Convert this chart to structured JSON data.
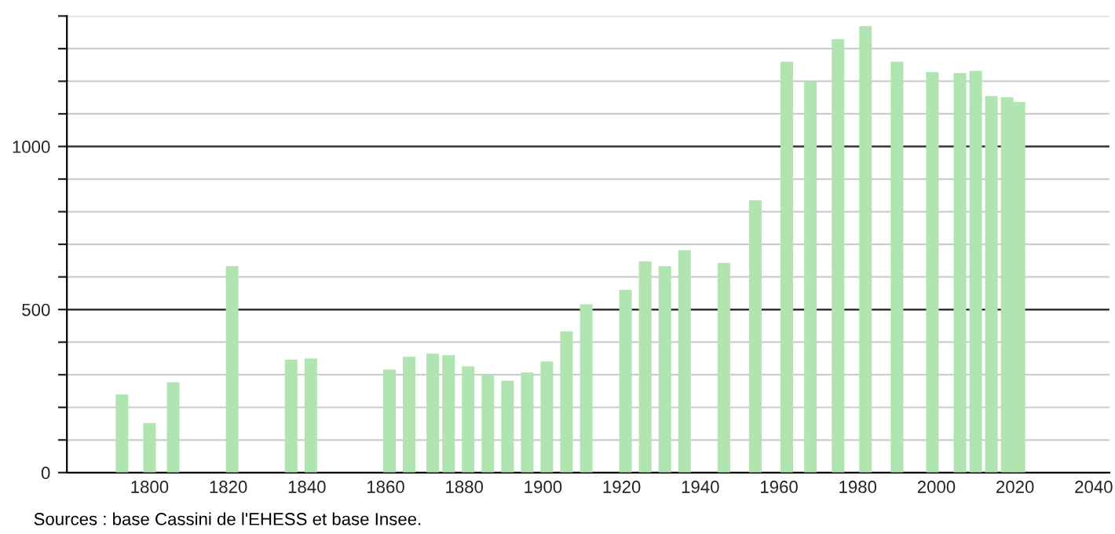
{
  "chart_data": {
    "type": "bar",
    "x": [
      1793,
      1800,
      1806,
      1821,
      1836,
      1841,
      1861,
      1866,
      1872,
      1876,
      1881,
      1886,
      1891,
      1896,
      1901,
      1906,
      1911,
      1921,
      1926,
      1931,
      1936,
      1946,
      1954,
      1962,
      1968,
      1975,
      1982,
      1990,
      1999,
      2006,
      2010,
      2014,
      2018,
      2021
    ],
    "values": [
      240,
      152,
      277,
      633,
      346,
      350,
      316,
      355,
      365,
      360,
      326,
      300,
      282,
      307,
      341,
      433,
      516,
      560,
      648,
      633,
      682,
      643,
      835,
      1260,
      1200,
      1329,
      1369,
      1260,
      1228,
      1225,
      1232,
      1155,
      1151,
      1136
    ],
    "color": "#b0e4b0",
    "xlim": [
      1779,
      2044
    ],
    "xticks": [
      1800,
      1820,
      1840,
      1860,
      1880,
      1900,
      1920,
      1940,
      1960,
      1980,
      2000,
      2020,
      2040
    ],
    "ylim": [
      0,
      1400
    ],
    "yticks": [
      0,
      {
        "value": 100,
        "label": null
      },
      {
        "value": 200,
        "label": null
      },
      {
        "value": 300,
        "label": null
      },
      {
        "value": 400,
        "label": null
      },
      500,
      {
        "value": 600,
        "label": null
      },
      {
        "value": 700,
        "label": null
      },
      {
        "value": 800,
        "label": null
      },
      {
        "value": 900,
        "label": null
      },
      1000,
      {
        "value": 1100,
        "label": null
      },
      {
        "value": 1200,
        "label": null
      },
      {
        "value": 1300,
        "label": null
      },
      {
        "value": 1400,
        "label": null
      }
    ],
    "grid": "y",
    "annotations": [
      "Sources : base Cassini de l'EHESS et base Insee."
    ]
  }
}
